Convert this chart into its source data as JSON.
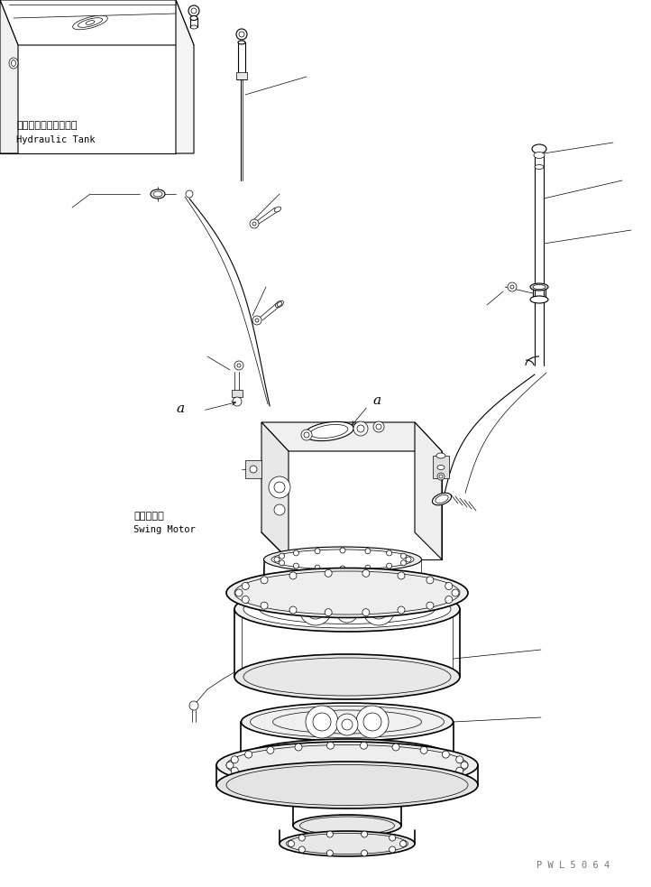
{
  "bg_color": "#ffffff",
  "line_color": "#000000",
  "fig_width": 7.22,
  "fig_height": 9.83,
  "dpi": 100,
  "watermark": "P W L 5 0 6 4",
  "label_hydraulic_tank_jp": "ハイドロリックタンク",
  "label_hydraulic_tank_en": "Hydraulic Tank",
  "label_swing_motor_jp": "旋回モータ",
  "label_swing_motor_en": "Swing Motor",
  "label_a1": "a",
  "label_a2": "a"
}
